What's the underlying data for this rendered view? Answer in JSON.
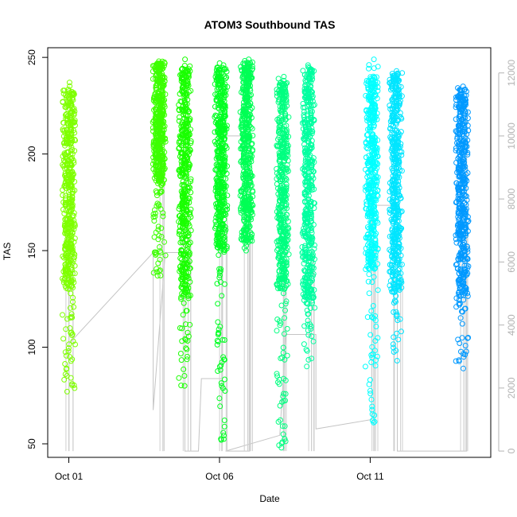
{
  "chart_data": {
    "type": "scatter",
    "title": "ATOM3 Southbound TAS",
    "xlabel": "Date",
    "ylabel": "TAS",
    "x_tick_labels": [
      "Oct 01",
      "Oct 06",
      "Oct 11"
    ],
    "x_tick_days": [
      1,
      6,
      11
    ],
    "xlim_days": [
      0.3,
      15.0
    ],
    "ylim": [
      43,
      255
    ],
    "y_ticks": [
      50,
      100,
      150,
      200,
      250
    ],
    "y2_ticks": [
      0,
      2000,
      4000,
      6000,
      8000,
      10000,
      12000
    ],
    "y2lim": [
      -200,
      12800
    ],
    "series": [
      {
        "day": 1.0,
        "ymin": 77,
        "ymax": 237,
        "dense_min": 130,
        "dense_max": 235,
        "color": "#7fff00"
      },
      {
        "day": 4.0,
        "ymin": 137,
        "ymax": 248,
        "dense_min": 185,
        "dense_max": 247,
        "color": "#3cff00"
      },
      {
        "day": 4.85,
        "ymin": 80,
        "ymax": 249,
        "dense_min": 125,
        "dense_max": 245,
        "color": "#1aff00"
      },
      {
        "day": 6.05,
        "ymin": 52,
        "ymax": 247,
        "dense_min": 150,
        "dense_max": 245,
        "color": "#00ff22"
      },
      {
        "day": 6.9,
        "ymin": 150,
        "ymax": 249,
        "dense_min": 155,
        "dense_max": 248,
        "color": "#00ff55"
      },
      {
        "day": 8.1,
        "ymin": 48,
        "ymax": 240,
        "dense_min": 130,
        "dense_max": 238,
        "color": "#00ff80"
      },
      {
        "day": 8.95,
        "ymin": 90,
        "ymax": 246,
        "dense_min": 125,
        "dense_max": 244,
        "color": "#00ffa0"
      },
      {
        "day": 11.05,
        "ymin": 61,
        "ymax": 249,
        "dense_min": 140,
        "dense_max": 240,
        "color": "#00ffff"
      },
      {
        "day": 11.85,
        "ymin": 93,
        "ymax": 243,
        "dense_min": 128,
        "dense_max": 242,
        "color": "#00e5ff"
      },
      {
        "day": 14.05,
        "ymin": 89,
        "ymax": 235,
        "dense_min": 125,
        "dense_max": 234,
        "color": "#0099ff"
      }
    ],
    "altitude_trace": [
      [
        1.0,
        2000
      ],
      [
        1.0,
        3400
      ],
      [
        3.8,
        6300
      ],
      [
        3.8,
        1300
      ],
      [
        4.2,
        6300
      ],
      [
        4.7,
        6300
      ],
      [
        4.85,
        6800
      ],
      [
        4.85,
        0
      ],
      [
        5.3,
        0
      ],
      [
        5.4,
        2300
      ],
      [
        6.1,
        2300
      ],
      [
        6.1,
        10000
      ],
      [
        7.0,
        10000
      ],
      [
        7.0,
        5000
      ],
      [
        7.0,
        0
      ],
      [
        6.2,
        0
      ],
      [
        8.0,
        500
      ],
      [
        8.2,
        3700
      ],
      [
        9.2,
        3700
      ],
      [
        9.2,
        700
      ],
      [
        11.05,
        1000
      ],
      [
        11.05,
        7800
      ],
      [
        11.9,
        7800
      ],
      [
        11.9,
        0
      ],
      [
        14.2,
        0
      ],
      [
        14.2,
        11000
      ]
    ]
  }
}
